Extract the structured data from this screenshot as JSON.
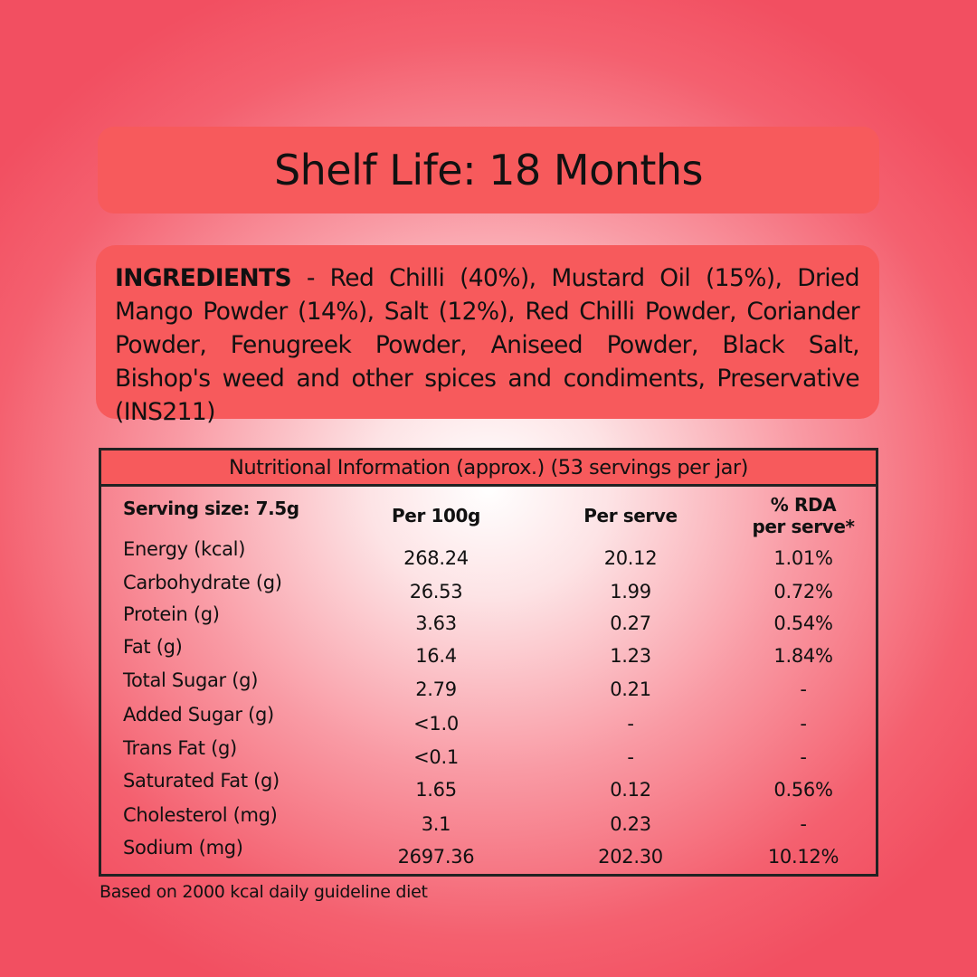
{
  "shelf_life": "Shelf Life: 18 Months",
  "ingredients": {
    "label": "INGREDIENTS",
    "text": " - Red Chilli (40%), Mustard Oil (15%), Dried Mango Powder (14%), Salt (12%), Red Chilli Powder, Coriander Powder, Fenugreek Powder, Aniseed Powder, Black Salt, Bishop's weed and other spices and condiments, Preservative (INS211)"
  },
  "nutrition": {
    "title": "Nutritional Information (approx.) (53 servings per jar)",
    "serving_size": "Serving size: 7.5g",
    "col_per100": "Per 100g",
    "col_perserve": "Per serve",
    "col_rda_1": "% RDA",
    "col_rda_2": "per serve*",
    "rows": [
      {
        "name": "Energy (kcal)",
        "per100": "268.24",
        "perserve": "20.12",
        "rda": "1.01%"
      },
      {
        "name": "Carbohydrate (g)",
        "per100": "26.53",
        "perserve": "1.99",
        "rda": "0.72%"
      },
      {
        "name": "Protein (g)",
        "per100": "3.63",
        "perserve": "0.27",
        "rda": "0.54%"
      },
      {
        "name": "Fat (g)",
        "per100": "16.4",
        "perserve": "1.23",
        "rda": "1.84%"
      },
      {
        "name": "Total Sugar (g)",
        "per100": "2.79",
        "perserve": "0.21",
        "rda": "-"
      },
      {
        "name": "Added Sugar (g)",
        "per100": "<1.0",
        "perserve": "-",
        "rda": "-"
      },
      {
        "name": "Trans Fat (g)",
        "per100": "<0.1",
        "perserve": "-",
        "rda": "-"
      },
      {
        "name": "Saturated Fat (g)",
        "per100": "1.65",
        "perserve": "0.12",
        "rda": "0.56%"
      },
      {
        "name": "Cholesterol (mg)",
        "per100": "3.1",
        "perserve": "0.23",
        "rda": "-"
      },
      {
        "name": "Sodium (mg)",
        "per100": "2697.36",
        "perserve": "202.30",
        "rda": "10.12%"
      }
    ],
    "footnote": "Based on 2000 kcal daily guideline diet"
  },
  "colors": {
    "panel": "#f75a5c",
    "border": "#222222",
    "background_center": "#ffffff",
    "background_edge": "#f24f61"
  }
}
